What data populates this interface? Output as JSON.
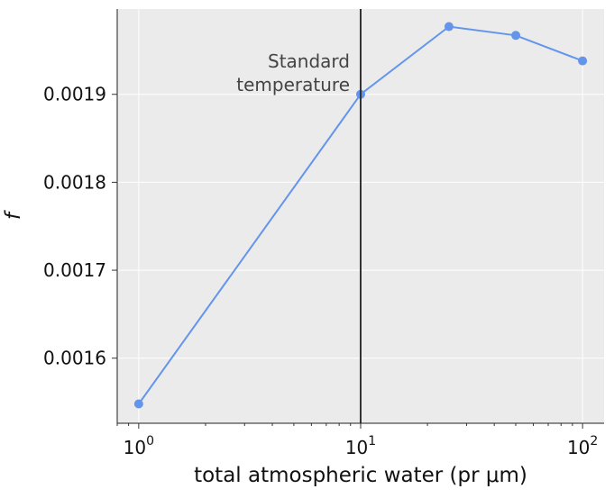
{
  "chart_data": {
    "type": "line",
    "xscale": "log",
    "xlabel": "total atmospheric water (pr μm)",
    "ylabel": "f",
    "xlim": [
      0.8,
      125
    ],
    "ylim": [
      0.001526,
      0.001997
    ],
    "x_ticks": [
      {
        "value": 1,
        "base": "10",
        "exp": "0"
      },
      {
        "value": 10,
        "base": "10",
        "exp": "1"
      },
      {
        "value": 100,
        "base": "10",
        "exp": "2"
      }
    ],
    "y_ticks": [
      {
        "value": 0.0016,
        "label": "0.0016"
      },
      {
        "value": 0.0017,
        "label": "0.0017"
      },
      {
        "value": 0.0018,
        "label": "0.0018"
      },
      {
        "value": 0.0019,
        "label": "0.0019"
      }
    ],
    "grid": true,
    "series": [
      {
        "color": "#6495ED",
        "x": [
          1,
          10,
          25,
          50,
          100
        ],
        "y": [
          0.001548,
          0.0019,
          0.001977,
          0.001967,
          0.001938
        ]
      }
    ],
    "reference_line": {
      "x": 10,
      "color": "#333333"
    },
    "annotation": {
      "lines": [
        "Standard",
        "temperature"
      ],
      "x": 10
    },
    "colors": {
      "background": "#EBEBEB",
      "grid": "#FFFFFF"
    }
  }
}
